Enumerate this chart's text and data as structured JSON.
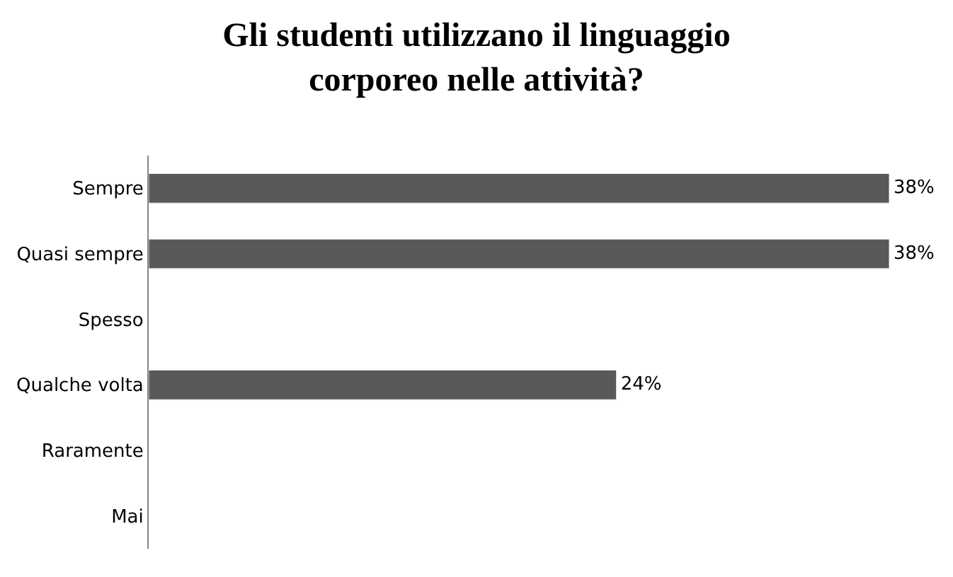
{
  "chart_data": {
    "type": "bar",
    "orientation": "horizontal",
    "title": "Gli studenti utilizzano il linguaggio\ncorporeo nelle attività?",
    "categories": [
      "Sempre",
      "Quasi sempre",
      "Spesso",
      "Qualche volta",
      "Raramente",
      "Mai"
    ],
    "values": [
      38,
      38,
      null,
      24,
      null,
      null
    ],
    "value_labels": [
      "38%",
      "38%",
      null,
      "24%",
      null,
      null
    ],
    "color": "#595959",
    "legend": false
  }
}
